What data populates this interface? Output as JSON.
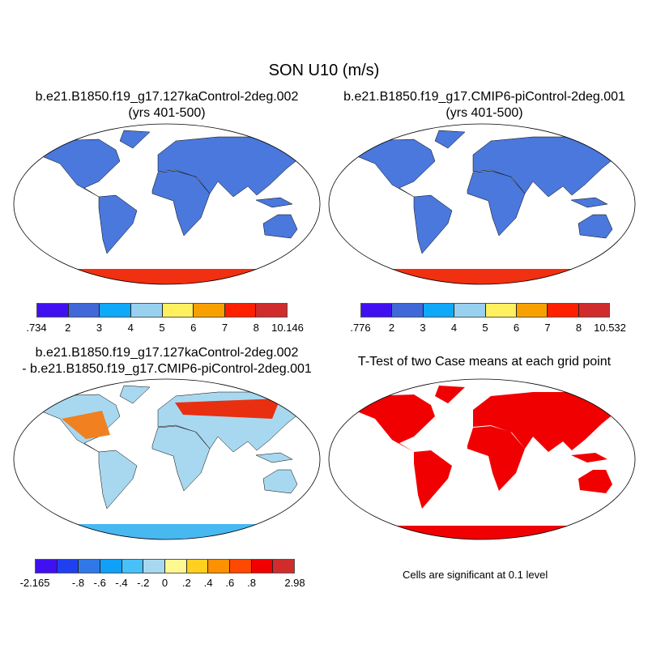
{
  "title": "SON U10 (m/s)",
  "panels": [
    {
      "title1": "b.e21.B1850.f19_g17.127kaControl-2deg.002",
      "title2": "(yrs 401-500)"
    },
    {
      "title1": "b.e21.B1850.f19_g17.CMIP6-piControl-2deg.001",
      "title2": "(yrs 401-500)"
    },
    {
      "title1": "b.e21.B1850.f19_g17.127kaControl-2deg.002",
      "title2": "- b.e21.B1850.f19_g17.CMIP6-piControl-2deg.001"
    },
    {
      "title1": "T-Test of two Case means at each grid point"
    }
  ],
  "note": "Cells are significant at 0.1 level",
  "chart_data": [
    {
      "type": "heatmap",
      "name": "case1",
      "colorbar": {
        "labels": [
          ".734",
          "2",
          "3",
          "4",
          "5",
          "6",
          "7",
          "8",
          "10.146"
        ],
        "colors": [
          "#4010f0",
          "#4068d8",
          "#10a8f8",
          "#98d0f0",
          "#fff060",
          "#f8a000",
          "#ff2000",
          "#d02c2c"
        ]
      }
    },
    {
      "type": "heatmap",
      "name": "case2",
      "colorbar": {
        "labels": [
          ".776",
          "2",
          "3",
          "4",
          "5",
          "6",
          "7",
          "8",
          "10.532"
        ],
        "colors": [
          "#4010f0",
          "#4068d8",
          "#10a8f8",
          "#98d0f0",
          "#fff060",
          "#f8a000",
          "#ff2000",
          "#d02c2c"
        ]
      }
    },
    {
      "type": "heatmap",
      "name": "difference",
      "colorbar": {
        "labels": [
          "-2.165",
          "",
          "-.8",
          "-.6",
          "-.4",
          "-.2",
          "0",
          ".2",
          ".4",
          ".6",
          ".8",
          "",
          "2.98"
        ],
        "colors": [
          "#4010f0",
          "#2040f0",
          "#3078e8",
          "#10a0f8",
          "#48c0f8",
          "#a8d8f0",
          "#fff890",
          "#ffd020",
          "#ff9000",
          "#ff4800",
          "#f00000",
          "#d02c2c"
        ]
      }
    },
    {
      "type": "heatmap",
      "name": "ttest",
      "significant_color": "#f00000"
    }
  ]
}
